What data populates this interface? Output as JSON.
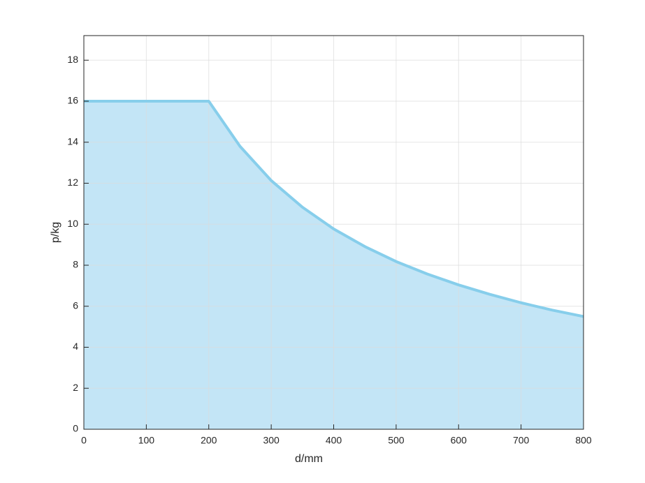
{
  "chart_data": {
    "type": "area",
    "x_label": "d/mm",
    "y_label": "p/kg",
    "x": [
      0,
      200,
      250,
      300,
      350,
      400,
      450,
      500,
      550,
      600,
      650,
      700,
      750,
      800
    ],
    "series": [
      {
        "color": "#87ceeb",
        "fill": "#c3e5f6",
        "values": [
          16,
          16,
          13.8,
          12.13,
          10.83,
          9.77,
          8.91,
          8.18,
          7.57,
          7.04,
          6.58,
          6.17,
          5.81,
          5.5
        ]
      }
    ],
    "xlim": [
      0,
      800
    ],
    "xticks": [
      0,
      100,
      200,
      300,
      400,
      500,
      600,
      700,
      800
    ],
    "ylim": [
      0,
      19.2
    ],
    "yticks": [
      0,
      2,
      4,
      6,
      8,
      10,
      12,
      14,
      16,
      18
    ],
    "grid": true
  }
}
